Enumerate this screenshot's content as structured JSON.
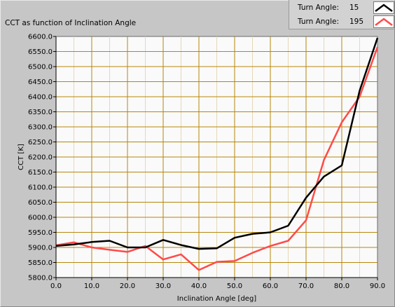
{
  "chart_data": {
    "type": "line",
    "title": "CCT as function of Inclination Angle",
    "xlabel": "Inclination Angle [deg]",
    "ylabel": "CCT [K]",
    "xlim": [
      0,
      90
    ],
    "ylim": [
      5800,
      6600
    ],
    "x_ticks": [
      "0.0",
      "10.0",
      "20.0",
      "30.0",
      "40.0",
      "50.0",
      "60.0",
      "70.0",
      "80.0",
      "90.0"
    ],
    "y_ticks": [
      "5800.0",
      "5850.0",
      "5900.0",
      "5950.0",
      "6000.0",
      "6050.0",
      "6100.0",
      "6150.0",
      "6200.0",
      "6250.0",
      "6300.0",
      "6350.0",
      "6400.0",
      "6450.0",
      "6500.0",
      "6550.0",
      "6600.0"
    ],
    "grid": true,
    "legend_position": "top-right",
    "x": [
      0,
      5,
      10,
      15,
      20,
      25,
      30,
      35,
      40,
      45,
      50,
      55,
      60,
      65,
      70,
      75,
      80,
      85,
      90
    ],
    "series": [
      {
        "name": "Turn Angle:",
        "legend_value": "15",
        "color": "#000000",
        "values": [
          5905,
          5910,
          5918,
          5922,
          5900,
          5900,
          5925,
          5908,
          5895,
          5897,
          5932,
          5945,
          5950,
          5972,
          6065,
          6135,
          6172,
          6420,
          6595
        ]
      },
      {
        "name": "Turn Angle:",
        "legend_value": "195",
        "color": "#ff4a4a",
        "values": [
          5907,
          5917,
          5900,
          5892,
          5885,
          5905,
          5860,
          5877,
          5825,
          5852,
          5855,
          5882,
          5905,
          5922,
          5990,
          6190,
          6315,
          6400,
          6565
        ]
      }
    ]
  }
}
